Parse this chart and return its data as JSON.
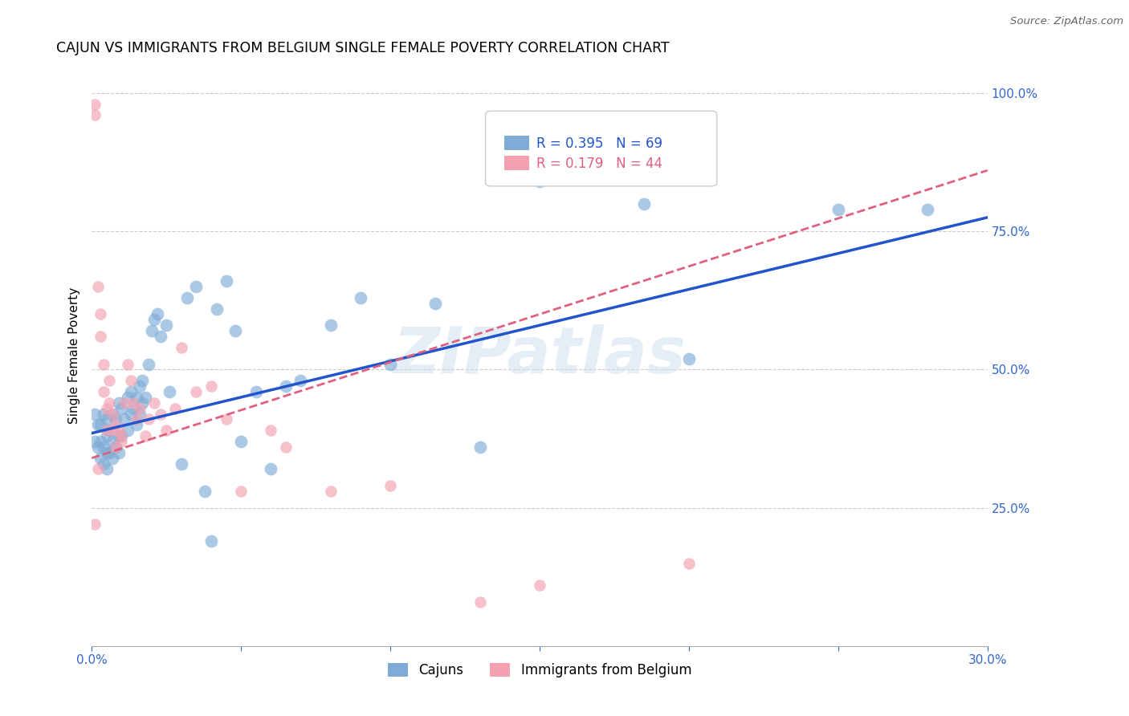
{
  "title": "CAJUN VS IMMIGRANTS FROM BELGIUM SINGLE FEMALE POVERTY CORRELATION CHART",
  "source": "Source: ZipAtlas.com",
  "ylabel": "Single Female Poverty",
  "x_min": 0.0,
  "x_max": 0.3,
  "y_min": 0.0,
  "y_max": 1.05,
  "x_ticks": [
    0.0,
    0.05,
    0.1,
    0.15,
    0.2,
    0.25,
    0.3
  ],
  "x_tick_labels": [
    "0.0%",
    "",
    "",
    "",
    "",
    "",
    "30.0%"
  ],
  "y_ticks": [
    0.25,
    0.5,
    0.75,
    1.0
  ],
  "y_tick_labels": [
    "25.0%",
    "50.0%",
    "75.0%",
    "100.0%"
  ],
  "cajun_color": "#7facd6",
  "belgium_color": "#f4a0b0",
  "line_cajun_color": "#2255cc",
  "line_belgium_color": "#e06080",
  "R_cajun": 0.395,
  "N_cajun": 69,
  "R_belgium": 0.179,
  "N_belgium": 44,
  "watermark": "ZIPatlas",
  "cajun_x": [
    0.001,
    0.001,
    0.002,
    0.002,
    0.003,
    0.003,
    0.003,
    0.004,
    0.004,
    0.004,
    0.005,
    0.005,
    0.005,
    0.005,
    0.006,
    0.006,
    0.007,
    0.007,
    0.007,
    0.008,
    0.008,
    0.009,
    0.009,
    0.009,
    0.01,
    0.01,
    0.011,
    0.012,
    0.012,
    0.013,
    0.013,
    0.014,
    0.015,
    0.015,
    0.016,
    0.016,
    0.017,
    0.017,
    0.018,
    0.019,
    0.02,
    0.021,
    0.022,
    0.023,
    0.025,
    0.026,
    0.03,
    0.032,
    0.035,
    0.038,
    0.04,
    0.042,
    0.045,
    0.048,
    0.05,
    0.055,
    0.06,
    0.065,
    0.07,
    0.08,
    0.09,
    0.1,
    0.115,
    0.13,
    0.15,
    0.185,
    0.2,
    0.25,
    0.28
  ],
  "cajun_y": [
    0.37,
    0.42,
    0.36,
    0.4,
    0.34,
    0.37,
    0.4,
    0.33,
    0.36,
    0.42,
    0.32,
    0.35,
    0.38,
    0.41,
    0.35,
    0.39,
    0.34,
    0.37,
    0.42,
    0.36,
    0.41,
    0.35,
    0.38,
    0.44,
    0.38,
    0.43,
    0.41,
    0.39,
    0.45,
    0.42,
    0.46,
    0.43,
    0.4,
    0.45,
    0.42,
    0.47,
    0.44,
    0.48,
    0.45,
    0.51,
    0.57,
    0.59,
    0.6,
    0.56,
    0.58,
    0.46,
    0.33,
    0.63,
    0.65,
    0.28,
    0.19,
    0.61,
    0.66,
    0.57,
    0.37,
    0.46,
    0.32,
    0.47,
    0.48,
    0.58,
    0.63,
    0.51,
    0.62,
    0.36,
    0.84,
    0.8,
    0.52,
    0.79,
    0.79
  ],
  "belgium_x": [
    0.001,
    0.001,
    0.001,
    0.002,
    0.002,
    0.003,
    0.003,
    0.004,
    0.004,
    0.005,
    0.005,
    0.006,
    0.006,
    0.007,
    0.007,
    0.008,
    0.008,
    0.009,
    0.01,
    0.01,
    0.011,
    0.012,
    0.013,
    0.014,
    0.015,
    0.016,
    0.018,
    0.019,
    0.021,
    0.023,
    0.025,
    0.028,
    0.03,
    0.035,
    0.04,
    0.045,
    0.05,
    0.06,
    0.065,
    0.08,
    0.1,
    0.13,
    0.15,
    0.2
  ],
  "belgium_y": [
    0.96,
    0.98,
    0.22,
    0.32,
    0.65,
    0.6,
    0.56,
    0.51,
    0.46,
    0.43,
    0.39,
    0.44,
    0.48,
    0.39,
    0.42,
    0.36,
    0.4,
    0.39,
    0.37,
    0.38,
    0.44,
    0.51,
    0.48,
    0.44,
    0.41,
    0.43,
    0.38,
    0.41,
    0.44,
    0.42,
    0.39,
    0.43,
    0.54,
    0.46,
    0.47,
    0.41,
    0.28,
    0.39,
    0.36,
    0.28,
    0.29,
    0.08,
    0.11,
    0.15
  ]
}
